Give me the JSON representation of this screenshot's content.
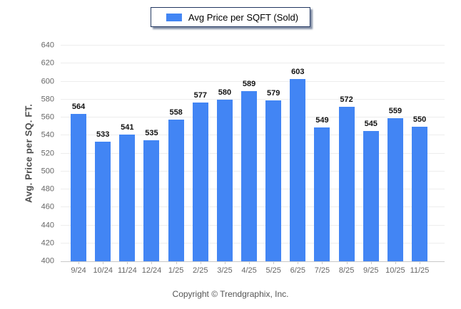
{
  "chart_data": {
    "type": "bar",
    "legend": "Avg Price per SQFT (Sold)",
    "ylabel": "Avg. Price per SQ. FT.",
    "xlabel": "",
    "categories": [
      "9/24",
      "10/24",
      "11/24",
      "12/24",
      "1/25",
      "2/25",
      "3/25",
      "4/25",
      "5/25",
      "6/25",
      "7/25",
      "8/25",
      "9/25",
      "10/25",
      "11/25"
    ],
    "values": [
      564,
      533,
      541,
      535,
      558,
      577,
      580,
      589,
      579,
      603,
      549,
      572,
      545,
      559,
      550
    ],
    "ylim": [
      400,
      640
    ],
    "yticks": [
      400,
      420,
      440,
      460,
      480,
      500,
      520,
      540,
      560,
      580,
      600,
      620,
      640
    ],
    "grid": "horizontal",
    "legend_position": "top-center",
    "bar_color": "#4285f4"
  },
  "footer": {
    "copyright": "Copyright © Trendgraphix, Inc."
  },
  "colors": {
    "bar": "#4285f4",
    "legend-border": "#20365f",
    "gridline": "#ededed",
    "axis-line": "#c9c9c9",
    "tick-text": "#666666",
    "value-text": "#111111",
    "axis-title-text": "#4d4d4d",
    "footer-text": "#555555"
  }
}
